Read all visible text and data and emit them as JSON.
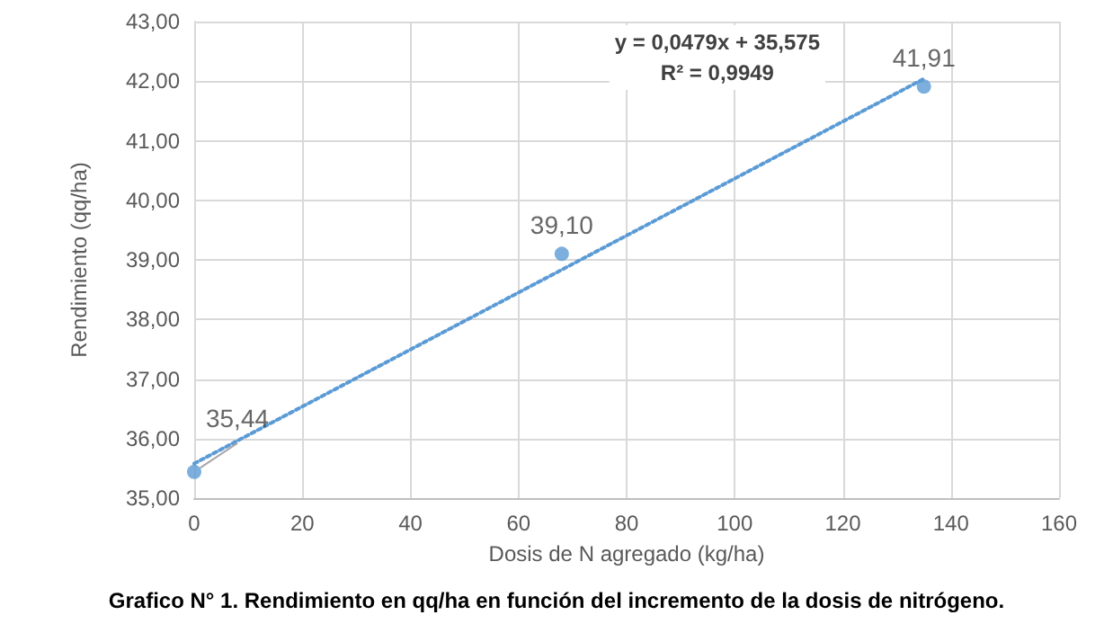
{
  "chart_data": {
    "type": "scatter",
    "title": "Grafico N° 1. Rendimiento en qq/ha en función del incremento de la dosis de nitrógeno.",
    "xlabel": "Dosis de N agregado (kg/ha)",
    "ylabel": "Rendimiento (qq/ha)",
    "annotations": [
      "y = 0,0479x + 35,575\nR² = 0,9949"
    ],
    "xlim": [
      0,
      160
    ],
    "xticks": [
      0,
      20,
      40,
      60,
      80,
      100,
      120,
      140,
      160
    ],
    "ylim": [
      35,
      43
    ],
    "yticks": [
      {
        "value": 35,
        "label": "35,00"
      },
      {
        "value": 36,
        "label": "36,00"
      },
      {
        "value": 37,
        "label": "37,00"
      },
      {
        "value": 38,
        "label": "38,00"
      },
      {
        "value": 39,
        "label": "39,00"
      },
      {
        "value": 40,
        "label": "40,00"
      },
      {
        "value": 41,
        "label": "41,00"
      },
      {
        "value": 42,
        "label": "42,00"
      },
      {
        "value": 43,
        "label": "43,00"
      }
    ],
    "grid": true,
    "marker": "circle",
    "series": [
      {
        "color": "#5b9bd5",
        "x": [
          0,
          68,
          135
        ],
        "values": [
          35.44,
          39.1,
          41.91
        ],
        "value_labels": [
          "35,44",
          "39,10",
          "41,91"
        ]
      },
      {
        "type": "line",
        "color": "#5b9bd5",
        "x": [
          0,
          135
        ],
        "values": [
          35.58,
          42.04
        ],
        "marker": "none",
        "line_style": "dotted"
      }
    ]
  }
}
